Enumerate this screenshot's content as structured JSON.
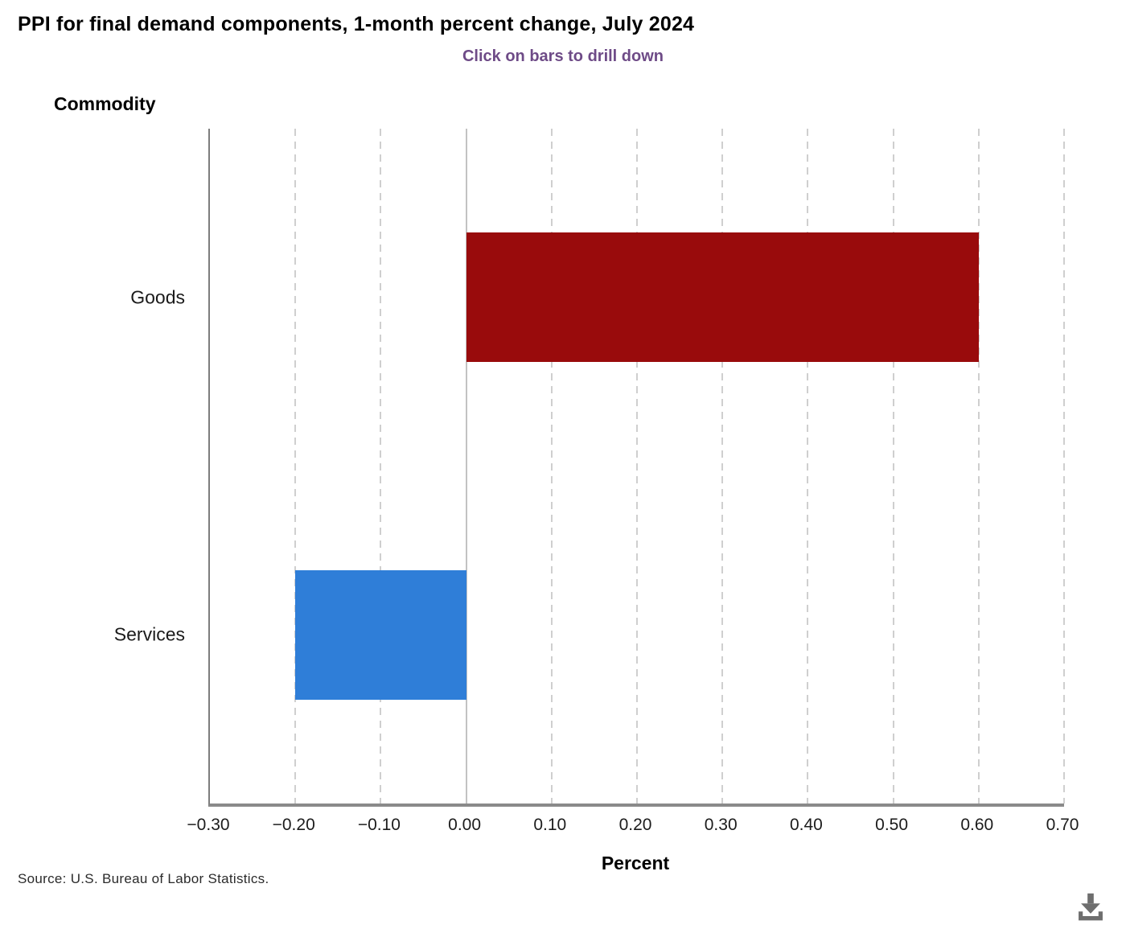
{
  "title": "PPI for final demand components, 1-month percent change, July 2024",
  "subtitle": "Click on bars to drill down",
  "source": "Source: U.S. Bureau of Labor Statistics.",
  "colors": {
    "subtitle": "#6E4B87",
    "goods_bar": "#990B0C",
    "services_bar": "#2F7ED8",
    "axis_line": "#8A8A8A",
    "gridline": "#CFCFCF",
    "zero_line": "#C2C2C2",
    "download_icon": "#6E6E6E"
  },
  "icons": {
    "download": "download-icon"
  },
  "chart_data": {
    "type": "bar",
    "orientation": "horizontal",
    "title": "PPI for final demand components, 1-month percent change, July 2024",
    "subtitle": "Click on bars to drill down",
    "categories": [
      "Goods",
      "Services"
    ],
    "values": [
      0.6,
      -0.2
    ],
    "bar_colors": [
      "#990B0C",
      "#2F7ED8"
    ],
    "xlabel": "Percent",
    "ylabel": "Commodity",
    "xlim": [
      -0.3,
      0.7
    ],
    "xticks": [
      -0.3,
      -0.2,
      -0.1,
      0.0,
      0.1,
      0.2,
      0.3,
      0.4,
      0.5,
      0.6,
      0.7
    ],
    "xtick_labels": [
      "−0.30",
      "−0.20",
      "−0.10",
      "0.00",
      "0.10",
      "0.20",
      "0.30",
      "0.40",
      "0.50",
      "0.60",
      "0.70"
    ],
    "grid": "vertical-dashed",
    "legend": "none"
  }
}
